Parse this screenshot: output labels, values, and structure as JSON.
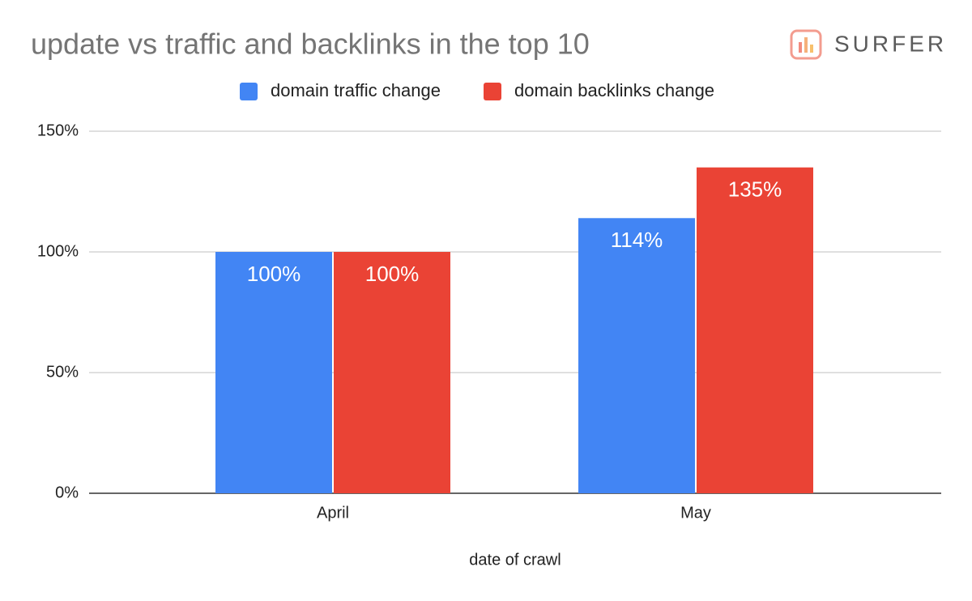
{
  "chart_data": {
    "type": "bar",
    "title": "update vs traffic and backlinks in the top 10",
    "brand": "SURFER",
    "x_label": "date of crawl",
    "categories": [
      "April",
      "May"
    ],
    "series": [
      {
        "name": "domain traffic change",
        "color": "#4285f4",
        "values": [
          100,
          114
        ],
        "value_labels": [
          "100%",
          "114%"
        ]
      },
      {
        "name": "domain backlinks change",
        "color": "#ea4335",
        "values": [
          100,
          135
        ],
        "value_labels": [
          "100%",
          "135%"
        ]
      }
    ],
    "ylim": [
      0,
      150
    ],
    "yticks": [
      {
        "value": 0,
        "label": "0%"
      },
      {
        "value": 50,
        "label": "50%"
      },
      {
        "value": 100,
        "label": "100%"
      },
      {
        "value": 150,
        "label": "150%"
      }
    ],
    "grid": true,
    "legend": "top"
  }
}
